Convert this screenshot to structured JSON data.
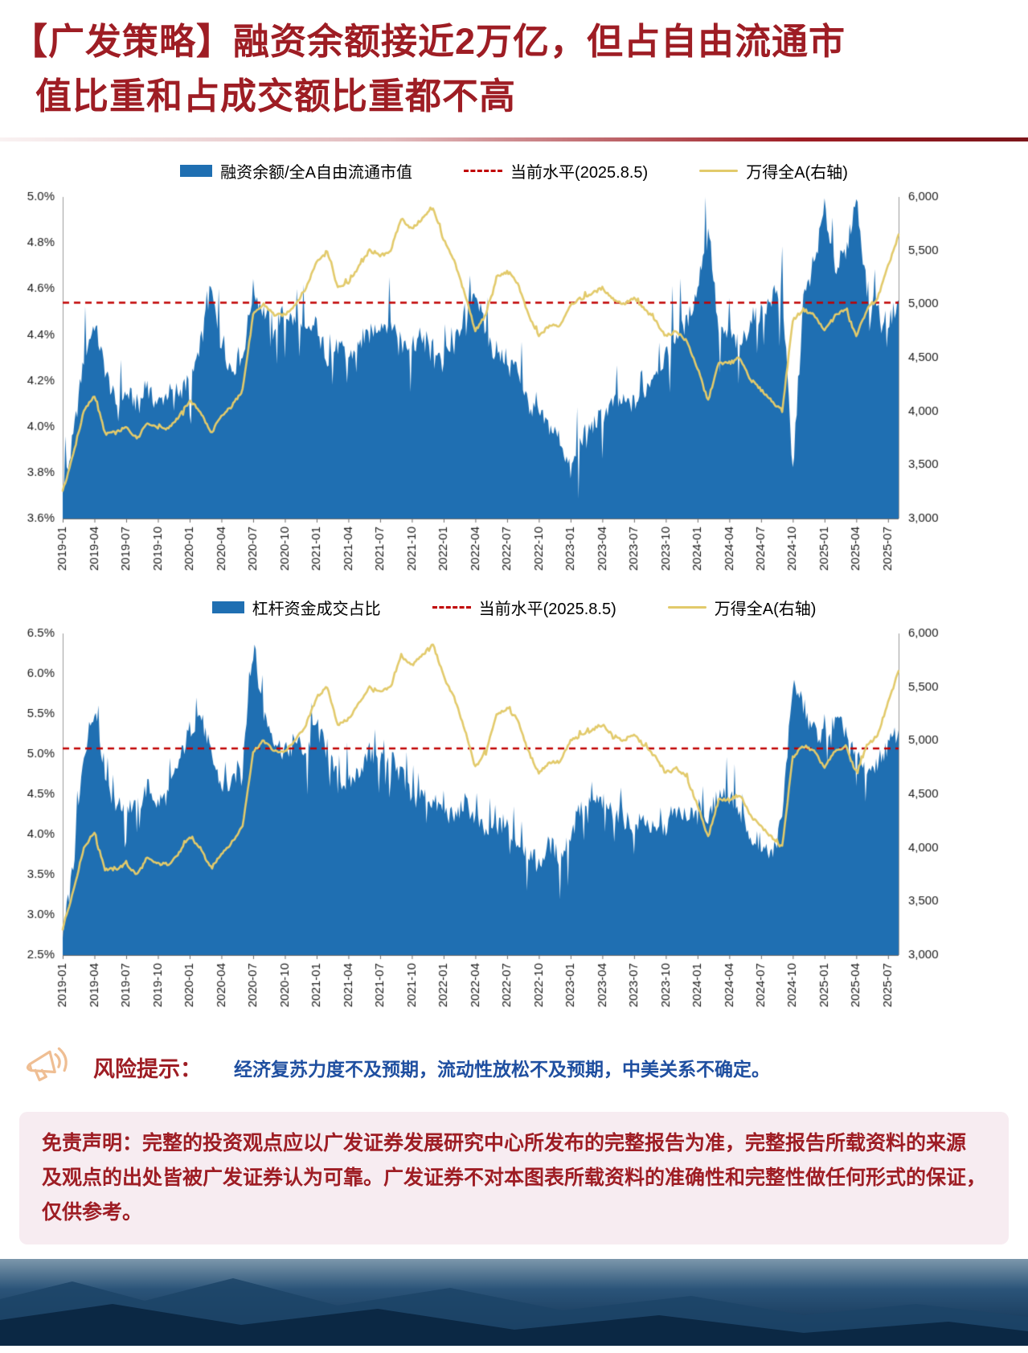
{
  "page": {
    "title_line1": "【广发策略】融资余额接近2万亿，但占自由流通市",
    "title_line2": "值比重和占成交额比重都不高",
    "title_color": "#9E1D24"
  },
  "risk": {
    "label": "风险提示：",
    "text": "经济复苏力度不及预期，流动性放松不及预期，中美关系不确定。"
  },
  "disclaimer": {
    "label": "免责声明：",
    "text": "完整的投资观点应以广发证券发展研究中心所发布的完整报告为准，完整报告所载资料的来源及观点的出处皆被广发证券认为可靠。广发证券不对本图表所载资料的准确性和完整性做任何形式的保证，仅供参考。"
  },
  "chart_data": [
    {
      "type": "area",
      "title": "融资余额/全A自由流通市值 与 万得全A",
      "x": [
        "2019-01",
        "2019-02",
        "2019-03",
        "2019-04",
        "2019-05",
        "2019-06",
        "2019-07",
        "2019-08",
        "2019-09",
        "2019-10",
        "2019-11",
        "2019-12",
        "2020-01",
        "2020-02",
        "2020-03",
        "2020-04",
        "2020-05",
        "2020-06",
        "2020-07",
        "2020-08",
        "2020-09",
        "2020-10",
        "2020-11",
        "2020-12",
        "2021-01",
        "2021-02",
        "2021-03",
        "2021-04",
        "2021-05",
        "2021-06",
        "2021-07",
        "2021-08",
        "2021-09",
        "2021-10",
        "2021-11",
        "2021-12",
        "2022-01",
        "2022-02",
        "2022-03",
        "2022-04",
        "2022-05",
        "2022-06",
        "2022-07",
        "2022-08",
        "2022-09",
        "2022-10",
        "2022-11",
        "2022-12",
        "2023-01",
        "2023-02",
        "2023-03",
        "2023-04",
        "2023-05",
        "2023-06",
        "2023-07",
        "2023-08",
        "2023-09",
        "2023-10",
        "2023-11",
        "2023-12",
        "2024-01",
        "2024-02",
        "2024-03",
        "2024-04",
        "2024-05",
        "2024-06",
        "2024-07",
        "2024-08",
        "2024-09",
        "2024-10",
        "2024-11",
        "2024-12",
        "2025-01",
        "2025-02",
        "2025-03",
        "2025-04",
        "2025-05",
        "2025-06",
        "2025-07",
        "2025-08"
      ],
      "x_ticks": [
        "2019-01",
        "2019-04",
        "2019-07",
        "2019-10",
        "2020-01",
        "2020-04",
        "2020-07",
        "2020-10",
        "2021-01",
        "2021-04",
        "2021-07",
        "2021-10",
        "2022-01",
        "2022-04",
        "2022-07",
        "2022-10",
        "2023-01",
        "2023-04",
        "2023-07",
        "2023-10",
        "2024-01",
        "2024-04",
        "2024-07",
        "2024-10",
        "2025-01",
        "2025-04",
        "2025-07"
      ],
      "left_axis": {
        "min": 3.6,
        "max": 5.0,
        "step": 0.2,
        "decimals": 1,
        "suffix": "%"
      },
      "right_axis": {
        "min": 3000,
        "max": 6000,
        "step": 500
      },
      "series": [
        {
          "name": "融资余额/全A自由流通市值",
          "type": "area",
          "axis": "left",
          "color": "#1F6FB2",
          "values": [
            3.7,
            3.95,
            4.3,
            4.45,
            4.25,
            4.1,
            4.15,
            4.1,
            4.15,
            4.1,
            4.15,
            4.15,
            4.2,
            4.35,
            4.6,
            4.35,
            4.25,
            4.3,
            4.6,
            4.5,
            4.45,
            4.5,
            4.45,
            4.4,
            4.45,
            4.3,
            4.35,
            4.3,
            4.35,
            4.4,
            4.45,
            4.45,
            4.4,
            4.35,
            4.4,
            4.35,
            4.3,
            4.35,
            4.5,
            4.6,
            4.4,
            4.3,
            4.3,
            4.25,
            4.1,
            4.05,
            4.0,
            3.95,
            3.8,
            3.95,
            4.0,
            4.05,
            4.1,
            4.1,
            4.1,
            4.15,
            4.25,
            4.3,
            4.4,
            4.45,
            4.6,
            4.9,
            4.4,
            4.4,
            4.35,
            4.45,
            4.5,
            4.55,
            4.6,
            3.8,
            4.55,
            4.7,
            4.95,
            4.7,
            4.75,
            5.0,
            4.6,
            4.5,
            4.45,
            4.55
          ]
        },
        {
          "name": "当前水平(2025.8.5)",
          "type": "hline",
          "axis": "left",
          "color": "#C00000",
          "value": 4.54
        },
        {
          "name": "万得全A(右轴)",
          "type": "line",
          "axis": "right",
          "color": "#E2CA6B",
          "values": [
            3250,
            3600,
            4000,
            4150,
            3800,
            3800,
            3850,
            3750,
            3900,
            3850,
            3850,
            3950,
            4100,
            4000,
            3800,
            3950,
            4050,
            4200,
            4900,
            5000,
            4900,
            4900,
            5000,
            5150,
            5400,
            5500,
            5150,
            5200,
            5350,
            5500,
            5450,
            5500,
            5800,
            5700,
            5800,
            5900,
            5600,
            5400,
            5100,
            4750,
            4900,
            5250,
            5300,
            5200,
            4900,
            4700,
            4800,
            4800,
            5000,
            5050,
            5100,
            5150,
            5050,
            5000,
            5050,
            4950,
            4850,
            4700,
            4750,
            4650,
            4400,
            4100,
            4450,
            4450,
            4500,
            4300,
            4200,
            4100,
            4000,
            4850,
            4950,
            4900,
            4750,
            4900,
            4950,
            4700,
            4950,
            5050,
            5350,
            5650
          ]
        }
      ]
    },
    {
      "type": "area",
      "title": "杠杆资金成交占比 与 万得全A",
      "x": [
        "2019-01",
        "2019-02",
        "2019-03",
        "2019-04",
        "2019-05",
        "2019-06",
        "2019-07",
        "2019-08",
        "2019-09",
        "2019-10",
        "2019-11",
        "2019-12",
        "2020-01",
        "2020-02",
        "2020-03",
        "2020-04",
        "2020-05",
        "2020-06",
        "2020-07",
        "2020-08",
        "2020-09",
        "2020-10",
        "2020-11",
        "2020-12",
        "2021-01",
        "2021-02",
        "2021-03",
        "2021-04",
        "2021-05",
        "2021-06",
        "2021-07",
        "2021-08",
        "2021-09",
        "2021-10",
        "2021-11",
        "2021-12",
        "2022-01",
        "2022-02",
        "2022-03",
        "2022-04",
        "2022-05",
        "2022-06",
        "2022-07",
        "2022-08",
        "2022-09",
        "2022-10",
        "2022-11",
        "2022-12",
        "2023-01",
        "2023-02",
        "2023-03",
        "2023-04",
        "2023-05",
        "2023-06",
        "2023-07",
        "2023-08",
        "2023-09",
        "2023-10",
        "2023-11",
        "2023-12",
        "2024-01",
        "2024-02",
        "2024-03",
        "2024-04",
        "2024-05",
        "2024-06",
        "2024-07",
        "2024-08",
        "2024-09",
        "2024-10",
        "2024-11",
        "2024-12",
        "2025-01",
        "2025-02",
        "2025-03",
        "2025-04",
        "2025-05",
        "2025-06",
        "2025-07",
        "2025-08"
      ],
      "x_ticks": [
        "2019-01",
        "2019-04",
        "2019-07",
        "2019-10",
        "2020-01",
        "2020-04",
        "2020-07",
        "2020-10",
        "2021-01",
        "2021-04",
        "2021-07",
        "2021-10",
        "2022-01",
        "2022-04",
        "2022-07",
        "2022-10",
        "2023-01",
        "2023-04",
        "2023-07",
        "2023-10",
        "2024-01",
        "2024-04",
        "2024-07",
        "2024-10",
        "2025-01",
        "2025-04",
        "2025-07"
      ],
      "left_axis": {
        "min": 2.5,
        "max": 6.5,
        "step": 0.5,
        "decimals": 1,
        "suffix": "%"
      },
      "right_axis": {
        "min": 3000,
        "max": 6000,
        "step": 500
      },
      "series": [
        {
          "name": "杠杆资金成交占比",
          "type": "area",
          "axis": "left",
          "color": "#1F6FB2",
          "values": [
            2.7,
            3.6,
            5.0,
            5.6,
            4.8,
            4.3,
            4.4,
            4.3,
            4.6,
            4.4,
            4.5,
            4.9,
            5.3,
            5.5,
            5.0,
            4.6,
            4.6,
            5.0,
            6.3,
            5.5,
            5.2,
            5.0,
            5.2,
            5.0,
            5.4,
            5.0,
            4.7,
            4.6,
            4.8,
            5.0,
            4.9,
            5.0,
            4.8,
            4.4,
            4.5,
            4.4,
            4.3,
            4.2,
            4.4,
            4.2,
            4.0,
            4.1,
            4.1,
            3.9,
            3.8,
            3.6,
            3.9,
            3.7,
            4.0,
            4.3,
            4.4,
            4.4,
            4.3,
            4.2,
            4.1,
            4.2,
            4.0,
            4.1,
            4.3,
            4.1,
            4.4,
            4.2,
            4.5,
            4.5,
            4.3,
            4.0,
            3.9,
            3.7,
            4.2,
            5.9,
            5.6,
            5.3,
            5.2,
            5.4,
            5.3,
            4.9,
            4.8,
            4.9,
            5.1,
            5.3
          ]
        },
        {
          "name": "当前水平(2025.8.5)",
          "type": "hline",
          "axis": "left",
          "color": "#C00000",
          "value": 5.07
        },
        {
          "name": "万得全A(右轴)",
          "type": "line",
          "axis": "right",
          "color": "#E2CA6B",
          "values": [
            3250,
            3600,
            4000,
            4150,
            3800,
            3800,
            3850,
            3750,
            3900,
            3850,
            3850,
            3950,
            4100,
            4000,
            3800,
            3950,
            4050,
            4200,
            4900,
            5000,
            4900,
            4900,
            5000,
            5150,
            5400,
            5500,
            5150,
            5200,
            5350,
            5500,
            5450,
            5500,
            5800,
            5700,
            5800,
            5900,
            5600,
            5400,
            5100,
            4750,
            4900,
            5250,
            5300,
            5200,
            4900,
            4700,
            4800,
            4800,
            5000,
            5050,
            5100,
            5150,
            5050,
            5000,
            5050,
            4950,
            4850,
            4700,
            4750,
            4650,
            4400,
            4100,
            4450,
            4450,
            4500,
            4300,
            4200,
            4100,
            4000,
            4850,
            4950,
            4900,
            4750,
            4900,
            4950,
            4700,
            4950,
            5050,
            5350,
            5650
          ]
        }
      ]
    }
  ]
}
